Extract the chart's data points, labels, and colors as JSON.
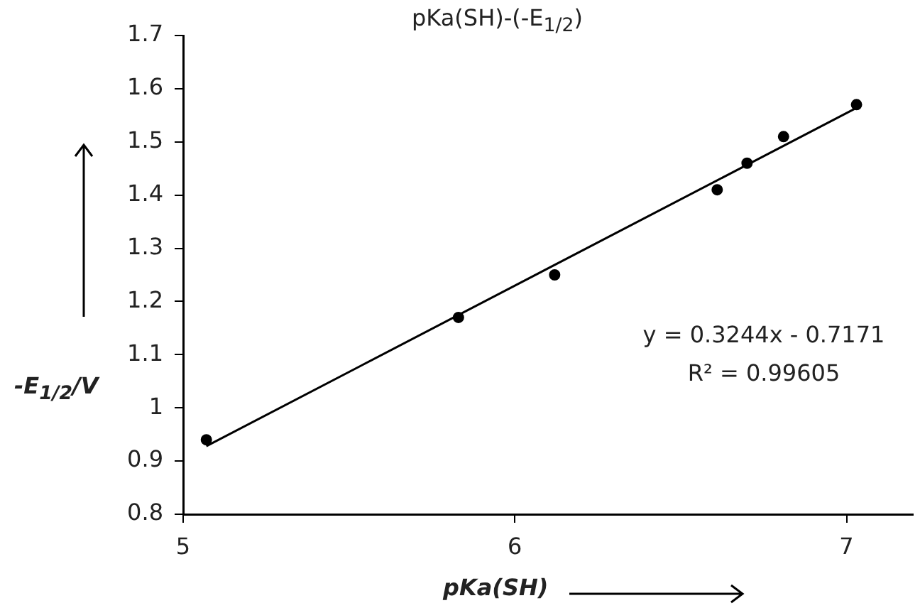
{
  "chart_data": {
    "type": "scatter",
    "title": "pKa(SH)-(-E$_{1/2}$)",
    "xlabel": "pKa(SH)",
    "ylabel": "-E$_{1/2}$/V",
    "xlim": [
      5,
      7.2
    ],
    "xticks": [
      5,
      6,
      7
    ],
    "ylim": [
      0.8,
      1.7
    ],
    "yticks": [
      0.8,
      0.9,
      1,
      1.1,
      1.2,
      1.3,
      1.4,
      1.5,
      1.6,
      1.7
    ],
    "grid": false,
    "legend": false,
    "marker": "circle",
    "series": [
      {
        "type": "scatter",
        "color": "#000000",
        "x": [
          5.07,
          5.83,
          6.12,
          6.61,
          6.7,
          6.81,
          7.03
        ],
        "values": [
          0.94,
          1.17,
          1.25,
          1.41,
          1.46,
          1.51,
          1.57
        ]
      },
      {
        "type": "line",
        "color": "#000000",
        "marker": "none",
        "x": [
          5.07,
          7.03
        ],
        "values": [
          0.928,
          1.564
        ]
      }
    ],
    "annotations": [
      "y = 0.3244x - 0.7171",
      "R² = 0.99605"
    ]
  }
}
